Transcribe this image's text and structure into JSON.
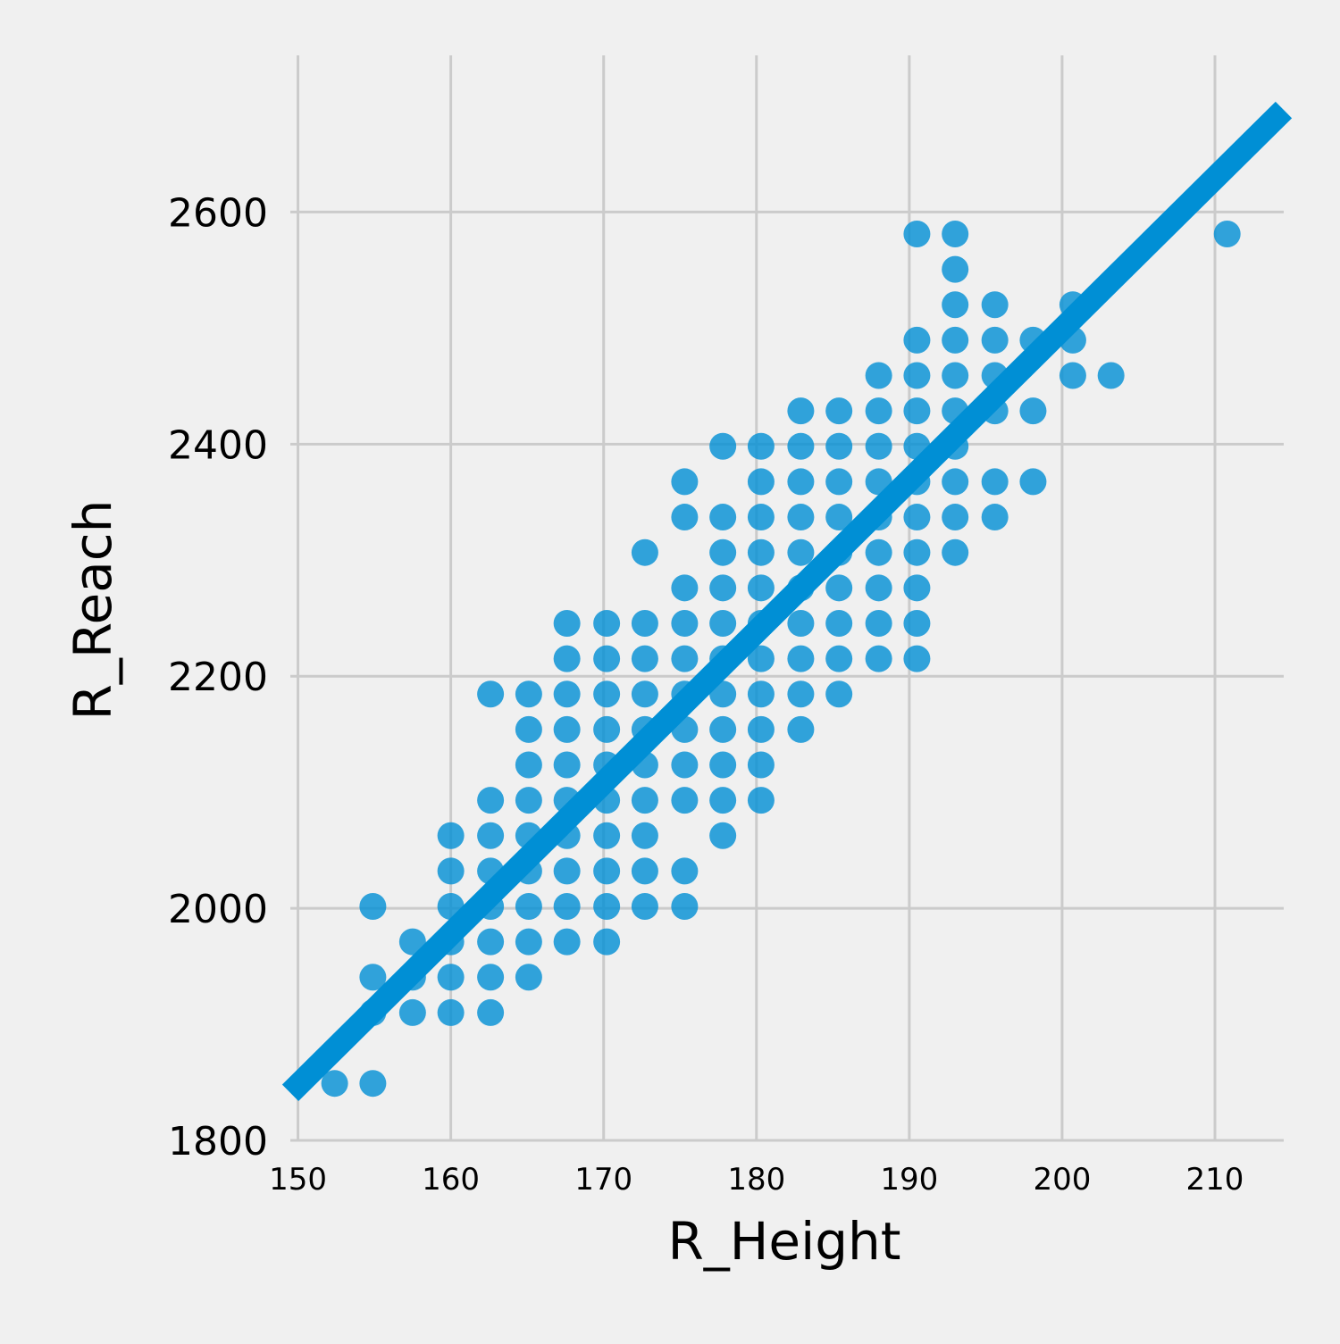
{
  "chart_data": {
    "type": "scatter",
    "title": "",
    "xlabel": "R_Height",
    "ylabel": "R_Reach",
    "xlim": [
      149.5,
      214.5
    ],
    "ylim": [
      1800,
      2735
    ],
    "x_ticks": [
      150,
      160,
      170,
      180,
      190,
      200,
      210
    ],
    "y_ticks": [
      1800,
      2000,
      2200,
      2400,
      2600
    ],
    "x_tick_labels": [
      "150",
      "160",
      "170",
      "180",
      "190",
      "200",
      "210"
    ],
    "y_tick_labels": [
      "1800",
      "2000",
      "2200",
      "2400",
      "2600"
    ],
    "grid": true,
    "marker_color": "#008fd5",
    "regression_line": {
      "x": [
        149.5,
        214.5
      ],
      "y": [
        1841,
        2688
      ]
    },
    "points": [
      [
        152.4,
        1849.1
      ],
      [
        154.9,
        1849.1
      ],
      [
        154.9,
        1910.1
      ],
      [
        154.9,
        1940.6
      ],
      [
        154.9,
        2001.6
      ],
      [
        157.5,
        1910.1
      ],
      [
        157.5,
        1940.6
      ],
      [
        157.5,
        1971.1
      ],
      [
        160.0,
        1910.1
      ],
      [
        160.0,
        1940.6
      ],
      [
        160.0,
        1971.1
      ],
      [
        160.0,
        2001.6
      ],
      [
        160.0,
        2032.1
      ],
      [
        160.0,
        2062.6
      ],
      [
        162.6,
        1910.1
      ],
      [
        162.6,
        1940.6
      ],
      [
        162.6,
        1971.1
      ],
      [
        162.6,
        2001.6
      ],
      [
        162.6,
        2032.1
      ],
      [
        162.6,
        2062.6
      ],
      [
        162.6,
        2093.1
      ],
      [
        162.6,
        2184.6
      ],
      [
        165.1,
        1940.6
      ],
      [
        165.1,
        1971.1
      ],
      [
        165.1,
        2001.6
      ],
      [
        165.1,
        2032.1
      ],
      [
        165.1,
        2062.6
      ],
      [
        165.1,
        2093.1
      ],
      [
        165.1,
        2123.6
      ],
      [
        165.1,
        2154.1
      ],
      [
        165.1,
        2184.6
      ],
      [
        167.6,
        1971.1
      ],
      [
        167.6,
        2001.6
      ],
      [
        167.6,
        2032.1
      ],
      [
        167.6,
        2062.6
      ],
      [
        167.6,
        2093.1
      ],
      [
        167.6,
        2123.6
      ],
      [
        167.6,
        2154.1
      ],
      [
        167.6,
        2184.6
      ],
      [
        167.6,
        2215.1
      ],
      [
        167.6,
        2245.6
      ],
      [
        170.2,
        1971.1
      ],
      [
        170.2,
        2001.6
      ],
      [
        170.2,
        2032.1
      ],
      [
        170.2,
        2062.6
      ],
      [
        170.2,
        2093.1
      ],
      [
        170.2,
        2123.6
      ],
      [
        170.2,
        2154.1
      ],
      [
        170.2,
        2184.6
      ],
      [
        170.2,
        2215.1
      ],
      [
        170.2,
        2245.6
      ],
      [
        172.7,
        2001.6
      ],
      [
        172.7,
        2032.1
      ],
      [
        172.7,
        2062.6
      ],
      [
        172.7,
        2093.1
      ],
      [
        172.7,
        2123.6
      ],
      [
        172.7,
        2154.1
      ],
      [
        172.7,
        2184.6
      ],
      [
        172.7,
        2215.1
      ],
      [
        172.7,
        2245.6
      ],
      [
        172.7,
        2306.6
      ],
      [
        175.3,
        2001.6
      ],
      [
        175.3,
        2032.1
      ],
      [
        175.3,
        2093.1
      ],
      [
        175.3,
        2123.6
      ],
      [
        175.3,
        2154.1
      ],
      [
        175.3,
        2184.6
      ],
      [
        175.3,
        2215.1
      ],
      [
        175.3,
        2245.6
      ],
      [
        175.3,
        2276.1
      ],
      [
        175.3,
        2337.1
      ],
      [
        175.3,
        2367.6
      ],
      [
        177.8,
        2062.6
      ],
      [
        177.8,
        2093.1
      ],
      [
        177.8,
        2123.6
      ],
      [
        177.8,
        2154.1
      ],
      [
        177.8,
        2184.6
      ],
      [
        177.8,
        2215.1
      ],
      [
        177.8,
        2245.6
      ],
      [
        177.8,
        2276.1
      ],
      [
        177.8,
        2306.6
      ],
      [
        177.8,
        2337.1
      ],
      [
        177.8,
        2398.1
      ],
      [
        180.3,
        2093.1
      ],
      [
        180.3,
        2123.6
      ],
      [
        180.3,
        2154.1
      ],
      [
        180.3,
        2184.6
      ],
      [
        180.3,
        2215.1
      ],
      [
        180.3,
        2245.6
      ],
      [
        180.3,
        2276.1
      ],
      [
        180.3,
        2306.6
      ],
      [
        180.3,
        2337.1
      ],
      [
        180.3,
        2367.6
      ],
      [
        180.3,
        2398.1
      ],
      [
        182.9,
        2154.1
      ],
      [
        182.9,
        2184.6
      ],
      [
        182.9,
        2215.1
      ],
      [
        182.9,
        2245.6
      ],
      [
        182.9,
        2276.1
      ],
      [
        182.9,
        2306.6
      ],
      [
        182.9,
        2337.1
      ],
      [
        182.9,
        2367.6
      ],
      [
        182.9,
        2398.1
      ],
      [
        182.9,
        2428.6
      ],
      [
        185.4,
        2184.6
      ],
      [
        185.4,
        2215.1
      ],
      [
        185.4,
        2245.6
      ],
      [
        185.4,
        2276.1
      ],
      [
        185.4,
        2306.6
      ],
      [
        185.4,
        2337.1
      ],
      [
        185.4,
        2367.6
      ],
      [
        185.4,
        2398.1
      ],
      [
        185.4,
        2428.6
      ],
      [
        188.0,
        2215.1
      ],
      [
        188.0,
        2245.6
      ],
      [
        188.0,
        2276.1
      ],
      [
        188.0,
        2306.6
      ],
      [
        188.0,
        2337.1
      ],
      [
        188.0,
        2367.6
      ],
      [
        188.0,
        2398.1
      ],
      [
        188.0,
        2428.6
      ],
      [
        188.0,
        2459.1
      ],
      [
        190.5,
        2215.1
      ],
      [
        190.5,
        2245.6
      ],
      [
        190.5,
        2276.1
      ],
      [
        190.5,
        2306.6
      ],
      [
        190.5,
        2337.1
      ],
      [
        190.5,
        2367.6
      ],
      [
        190.5,
        2398.1
      ],
      [
        190.5,
        2428.6
      ],
      [
        190.5,
        2459.1
      ],
      [
        190.5,
        2489.6
      ],
      [
        190.5,
        2581.1
      ],
      [
        193.0,
        2306.6
      ],
      [
        193.0,
        2337.1
      ],
      [
        193.0,
        2367.6
      ],
      [
        193.0,
        2398.1
      ],
      [
        193.0,
        2428.6
      ],
      [
        193.0,
        2459.1
      ],
      [
        193.0,
        2489.6
      ],
      [
        193.0,
        2520.1
      ],
      [
        193.0,
        2550.6
      ],
      [
        193.0,
        2581.1
      ],
      [
        195.6,
        2337.1
      ],
      [
        195.6,
        2367.6
      ],
      [
        195.6,
        2428.6
      ],
      [
        195.6,
        2459.1
      ],
      [
        195.6,
        2489.6
      ],
      [
        195.6,
        2520.1
      ],
      [
        198.1,
        2367.6
      ],
      [
        198.1,
        2428.6
      ],
      [
        198.1,
        2489.6
      ],
      [
        200.7,
        2459.1
      ],
      [
        200.7,
        2489.6
      ],
      [
        200.7,
        2520.1
      ],
      [
        203.2,
        2459.1
      ],
      [
        210.8,
        2581.1
      ]
    ]
  }
}
